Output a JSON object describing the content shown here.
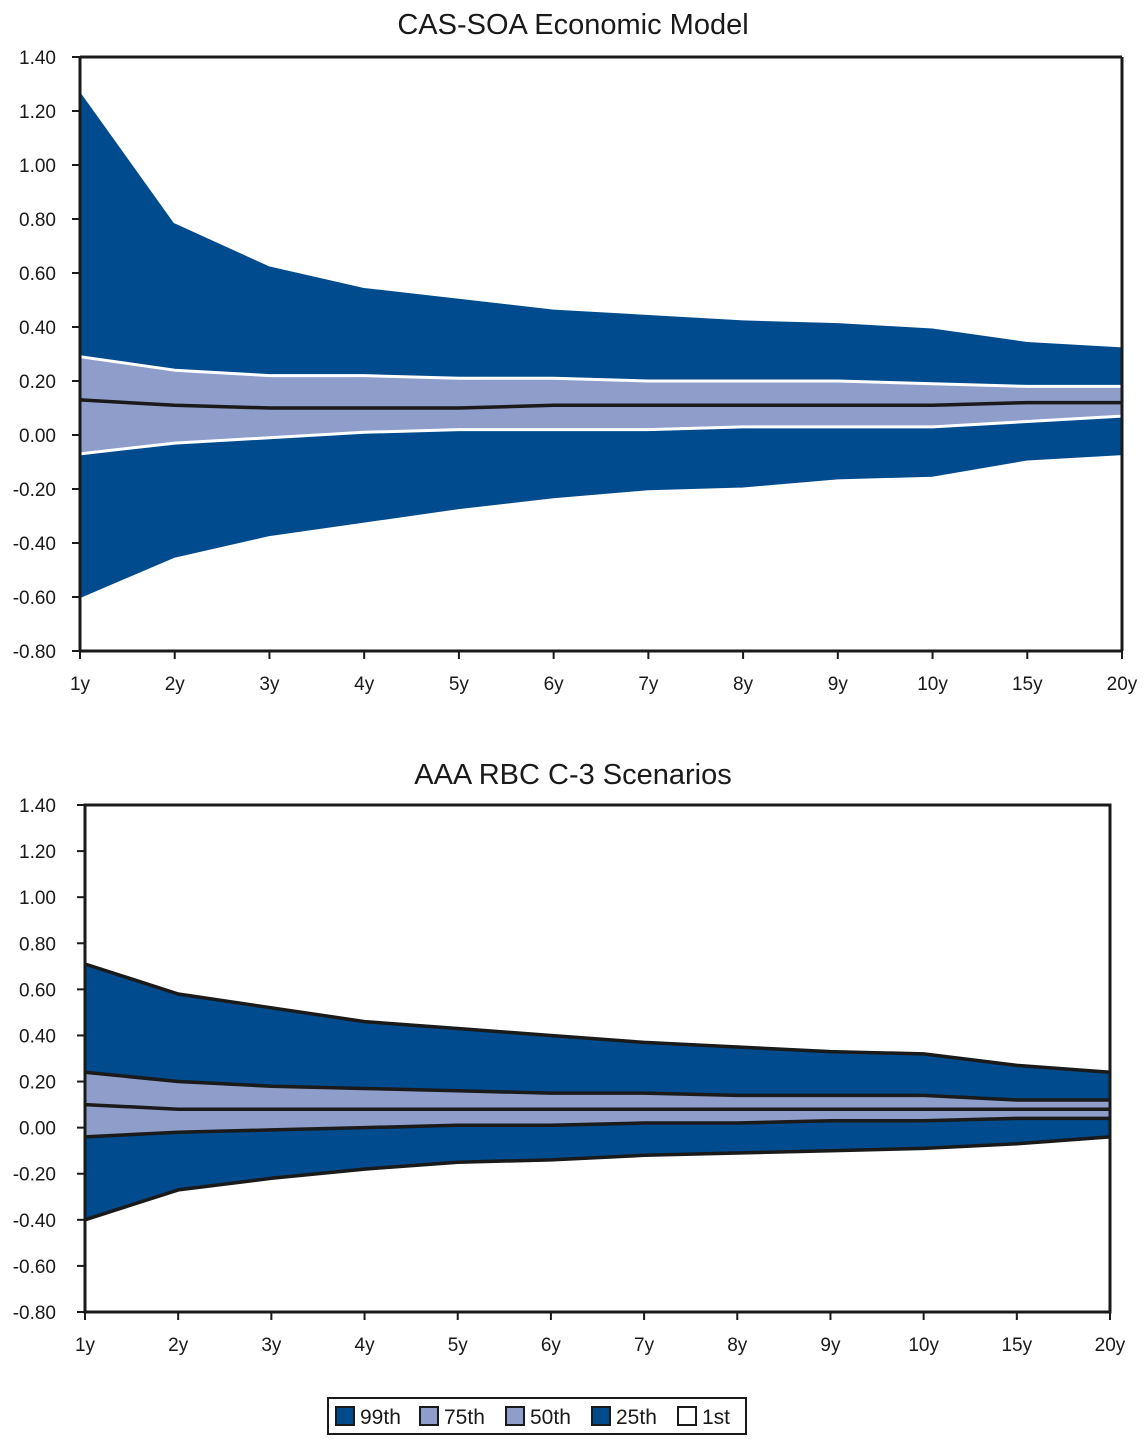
{
  "colors": {
    "outer_band": "#004b8d",
    "inner_band": "#8e9dc9",
    "frame": "#1a1a1a",
    "chart1_band_edge": "#ffffff",
    "chart2_band_edge": "#1a1a1a",
    "median_line": "#1a1a1a"
  },
  "legend": {
    "items": [
      {
        "label": "99th",
        "color": "#004b8d"
      },
      {
        "label": "75th",
        "color": "#8e9dc9"
      },
      {
        "label": "50th",
        "color": "#8e9dc9"
      },
      {
        "label": "25th",
        "color": "#004b8d"
      },
      {
        "label": "1st",
        "color": "#ffffff"
      }
    ]
  },
  "chart_data": [
    {
      "type": "area",
      "title": "CAS-SOA Economic Model",
      "categories": [
        "1y",
        "2y",
        "3y",
        "4y",
        "5y",
        "6y",
        "7y",
        "8y",
        "9y",
        "10y",
        "15y",
        "20y"
      ],
      "ylim": [
        -0.8,
        1.4
      ],
      "yticks": [
        "1.40",
        "1.20",
        "1.00",
        "0.80",
        "0.60",
        "0.40",
        "0.20",
        "0.00",
        "-0.20",
        "-0.40",
        "-0.60",
        "-0.80"
      ],
      "grid": false,
      "series": [
        {
          "name": "99th",
          "values": [
            1.28,
            0.79,
            0.63,
            0.55,
            0.51,
            0.47,
            0.45,
            0.43,
            0.42,
            0.4,
            0.35,
            0.33
          ]
        },
        {
          "name": "75th",
          "values": [
            0.29,
            0.24,
            0.22,
            0.22,
            0.21,
            0.21,
            0.2,
            0.2,
            0.2,
            0.19,
            0.18,
            0.18
          ]
        },
        {
          "name": "50th",
          "values": [
            0.13,
            0.11,
            0.1,
            0.1,
            0.1,
            0.11,
            0.11,
            0.11,
            0.11,
            0.11,
            0.12,
            0.12
          ]
        },
        {
          "name": "25th",
          "values": [
            -0.07,
            -0.03,
            -0.01,
            0.01,
            0.02,
            0.02,
            0.02,
            0.03,
            0.03,
            0.03,
            0.05,
            0.07
          ]
        },
        {
          "name": "1st",
          "values": [
            -0.61,
            -0.46,
            -0.38,
            -0.33,
            -0.28,
            -0.24,
            -0.21,
            -0.2,
            -0.17,
            -0.16,
            -0.1,
            -0.08
          ]
        }
      ]
    },
    {
      "type": "area",
      "title": "AAA RBC C-3 Scenarios",
      "categories": [
        "1y",
        "2y",
        "3y",
        "4y",
        "5y",
        "6y",
        "7y",
        "8y",
        "9y",
        "10y",
        "15y",
        "20y"
      ],
      "ylim": [
        -0.8,
        1.4
      ],
      "yticks": [
        "1.40",
        "1.20",
        "1.00",
        "0.80",
        "0.60",
        "0.40",
        "0.20",
        "0.00",
        "-0.20",
        "-0.40",
        "-0.60",
        "-0.80"
      ],
      "grid": false,
      "series": [
        {
          "name": "99th",
          "values": [
            0.71,
            0.58,
            0.52,
            0.46,
            0.43,
            0.4,
            0.37,
            0.35,
            0.33,
            0.32,
            0.27,
            0.24
          ]
        },
        {
          "name": "75th",
          "values": [
            0.24,
            0.2,
            0.18,
            0.17,
            0.16,
            0.15,
            0.15,
            0.14,
            0.14,
            0.14,
            0.12,
            0.12
          ]
        },
        {
          "name": "50th",
          "values": [
            0.1,
            0.08,
            0.08,
            0.08,
            0.08,
            0.08,
            0.08,
            0.08,
            0.08,
            0.08,
            0.08,
            0.08
          ]
        },
        {
          "name": "25th",
          "values": [
            -0.04,
            -0.02,
            -0.01,
            0.0,
            0.01,
            0.01,
            0.02,
            0.02,
            0.03,
            0.03,
            0.04,
            0.04
          ]
        },
        {
          "name": "1st",
          "values": [
            -0.4,
            -0.27,
            -0.22,
            -0.18,
            -0.15,
            -0.14,
            -0.12,
            -0.11,
            -0.1,
            -0.09,
            -0.07,
            -0.04
          ]
        }
      ]
    }
  ]
}
